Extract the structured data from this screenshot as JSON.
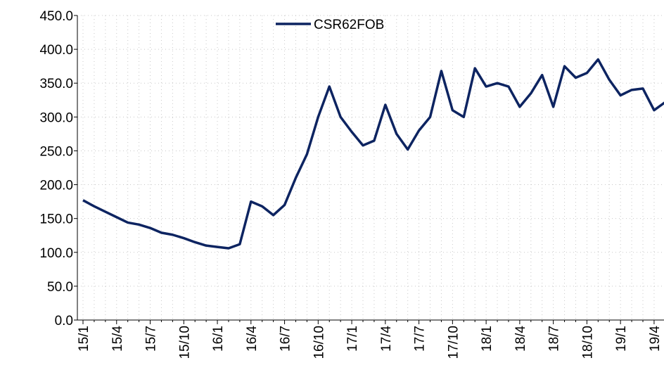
{
  "chart_data": {
    "type": "line",
    "categories": [
      "15/1",
      null,
      null,
      "15/4",
      null,
      null,
      "15/7",
      null,
      null,
      "15/10",
      null,
      null,
      "16/1",
      null,
      null,
      "16/4",
      null,
      null,
      "16/7",
      null,
      null,
      "16/10",
      null,
      null,
      "17/1",
      null,
      null,
      "17/4",
      null,
      null,
      "17/7",
      null,
      null,
      "17/10",
      null,
      null,
      "18/1",
      null,
      null,
      "18/4",
      null,
      null,
      "18/7",
      null,
      null,
      "18/10",
      null,
      null,
      "19/1",
      null,
      null,
      "19/4",
      null
    ],
    "series": [
      {
        "name": "CSR62FOB",
        "color": "#0d2461",
        "values": [
          177,
          168,
          160,
          152,
          144,
          141,
          136,
          129,
          126,
          121,
          115,
          110,
          108,
          106,
          112,
          175,
          168,
          155,
          170,
          210,
          245,
          300,
          345,
          300,
          278,
          258,
          265,
          318,
          275,
          252,
          280,
          300,
          368,
          310,
          300,
          372,
          345,
          350,
          345,
          315,
          335,
          362,
          315,
          375,
          358,
          365,
          385,
          355,
          332,
          340,
          342,
          310,
          322
        ]
      }
    ],
    "ylim": [
      0,
      450
    ],
    "yticks": [
      {
        "value": 0,
        "label": "0.0"
      },
      {
        "value": 50,
        "label": "50.0"
      },
      {
        "value": 100,
        "label": "100.0"
      },
      {
        "value": 150,
        "label": "150.0"
      },
      {
        "value": 200,
        "label": "200.0"
      },
      {
        "value": 250,
        "label": "250.0"
      },
      {
        "value": 300,
        "label": "300.0"
      },
      {
        "value": 350,
        "label": "350.0"
      },
      {
        "value": 400,
        "label": "400.0"
      },
      {
        "value": 450,
        "label": "450.0"
      }
    ],
    "grid": true,
    "legend": "top"
  }
}
